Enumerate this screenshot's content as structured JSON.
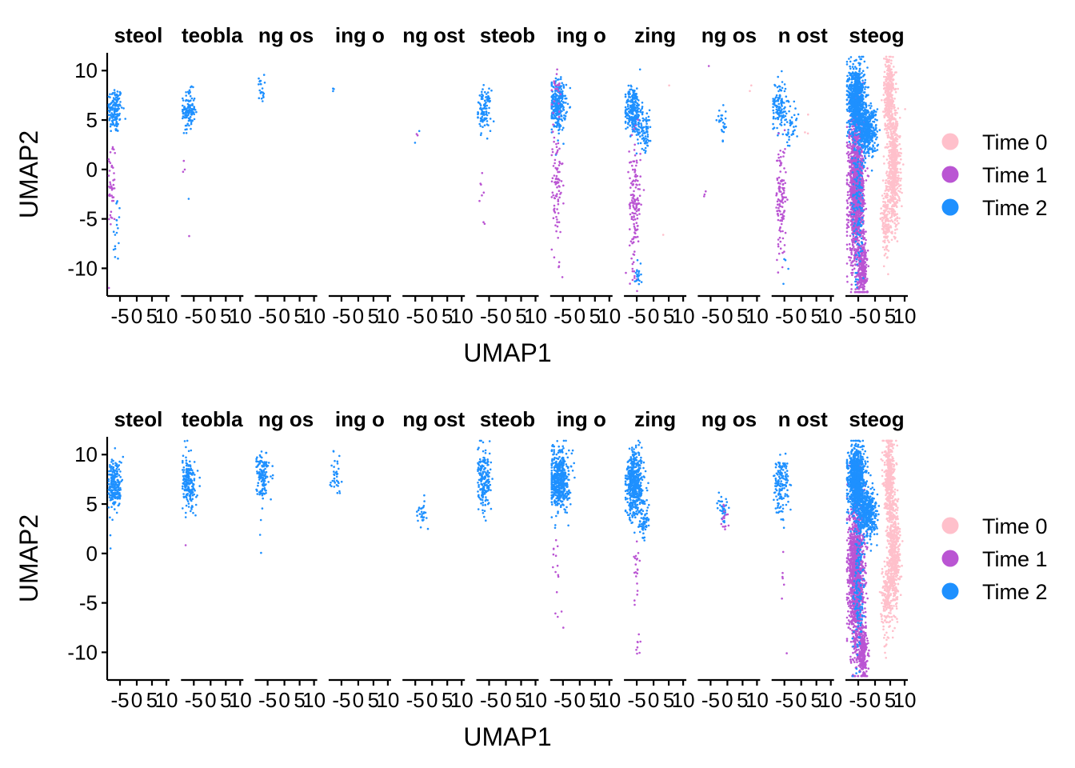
{
  "colors": {
    "Time 0": "#ffc0cb",
    "Time 1": "#ba55d3",
    "Time 2": "#1e90ff"
  },
  "chart_data": [
    {
      "type": "scatter",
      "xlabel": "UMAP1",
      "ylabel": "UMAP2",
      "y_ticks": [
        10,
        5,
        0,
        -5,
        -10
      ],
      "y_tick_labels": [
        "10",
        "5",
        "0",
        "-5",
        "-10"
      ],
      "ylim": [
        -12.8,
        11.8
      ],
      "x_ticks": [
        -5,
        0,
        5,
        10
      ],
      "x_tick_labels": [
        "-5",
        "0",
        "5",
        "10"
      ],
      "xlim": [
        -8,
        12
      ],
      "legend": {
        "placement": "right",
        "entries": [
          "Time 0",
          "Time 1",
          "Time 2"
        ]
      },
      "facets": [
        {
          "title": "steol",
          "clusters": [
            {
              "series": "Time 2",
              "cx": -5.5,
              "cy": 6.0,
              "sx": 1.2,
              "sy": 1.2,
              "n": 150
            },
            {
              "series": "Time 1",
              "cx": -6.5,
              "cy": -1.5,
              "sx": 0.6,
              "sy": 2.5,
              "n": 45
            },
            {
              "series": "Time 2",
              "cx": -5.0,
              "cy": -7.0,
              "sx": 0.6,
              "sy": 2.5,
              "n": 18
            }
          ]
        },
        {
          "title": "teobla",
          "clusters": [
            {
              "series": "Time 2",
              "cx": -5.5,
              "cy": 6.0,
              "sx": 1.0,
              "sy": 1.0,
              "n": 120
            },
            {
              "series": "Time 1",
              "cx": -6.5,
              "cy": 0.0,
              "sx": 0.4,
              "sy": 0.5,
              "n": 3
            },
            {
              "series": "Time 2",
              "cx": -5.5,
              "cy": -3.0,
              "sx": 0.2,
              "sy": 0.3,
              "n": 1
            },
            {
              "series": "Time 1",
              "cx": -5.0,
              "cy": -6.5,
              "sx": 0.2,
              "sy": 0.2,
              "n": 1
            }
          ]
        },
        {
          "title": "ng os",
          "clusters": [
            {
              "series": "Time 2",
              "cx": -6.0,
              "cy": 8.2,
              "sx": 0.5,
              "sy": 0.7,
              "n": 22
            }
          ]
        },
        {
          "title": "ing o",
          "clusters": [
            {
              "series": "Time 2",
              "cx": -6.5,
              "cy": 8.0,
              "sx": 0.2,
              "sy": 0.2,
              "n": 3
            }
          ]
        },
        {
          "title": "ng ost",
          "clusters": [
            {
              "series": "Time 2",
              "cx": -3.0,
              "cy": 3.6,
              "sx": 0.6,
              "sy": 0.5,
              "n": 2
            },
            {
              "series": "Time 1",
              "cx": -3.5,
              "cy": 3.2,
              "sx": 0.3,
              "sy": 0.3,
              "n": 2
            }
          ]
        },
        {
          "title": "steob",
          "clusters": [
            {
              "series": "Time 2",
              "cx": -5.5,
              "cy": 6.0,
              "sx": 1.1,
              "sy": 1.0,
              "n": 110
            },
            {
              "series": "Time 1",
              "cx": -6.5,
              "cy": -2.0,
              "sx": 0.5,
              "sy": 1.5,
              "n": 6
            },
            {
              "series": "Time 1",
              "cx": -5.5,
              "cy": -5.5,
              "sx": 0.3,
              "sy": 0.5,
              "n": 2
            }
          ]
        },
        {
          "title": "ing o",
          "clusters": [
            {
              "series": "Time 2",
              "cx": -5.5,
              "cy": 6.5,
              "sx": 1.3,
              "sy": 1.3,
              "n": 260
            },
            {
              "series": "Time 1",
              "cx": -6.0,
              "cy": 8.5,
              "sx": 0.7,
              "sy": 1.0,
              "n": 20
            },
            {
              "series": "Time 1",
              "cx": -6.0,
              "cy": -1.5,
              "sx": 1.0,
              "sy": 3.0,
              "n": 90
            },
            {
              "series": "Time 1",
              "cx": -4.5,
              "cy": -10.5,
              "sx": 0.4,
              "sy": 0.6,
              "n": 3
            }
          ]
        },
        {
          "title": "zing",
          "clusters": [
            {
              "series": "Time 2",
              "cx": -5.0,
              "cy": 6.0,
              "sx": 1.3,
              "sy": 1.2,
              "n": 260
            },
            {
              "series": "Time 2",
              "cx": -1.5,
              "cy": 4.0,
              "sx": 1.2,
              "sy": 1.0,
              "n": 80
            },
            {
              "series": "Time 1",
              "cx": -4.5,
              "cy": -3.5,
              "sx": 0.9,
              "sy": 3.3,
              "n": 150
            },
            {
              "series": "Time 2",
              "cx": -3.5,
              "cy": -10.5,
              "sx": 0.5,
              "sy": 0.7,
              "n": 20
            },
            {
              "series": "Time 0",
              "cx": 6.5,
              "cy": 8.8,
              "sx": 0.2,
              "sy": 0.2,
              "n": 1
            },
            {
              "series": "Time 0",
              "cx": 4.5,
              "cy": -6.7,
              "sx": 0.2,
              "sy": 0.2,
              "n": 1
            }
          ]
        },
        {
          "title": "ng os",
          "clusters": [
            {
              "series": "Time 1",
              "cx": -4.5,
              "cy": 10.0,
              "sx": 0.2,
              "sy": 0.2,
              "n": 1
            },
            {
              "series": "Time 2",
              "cx": 0.0,
              "cy": 4.5,
              "sx": 0.9,
              "sy": 0.8,
              "n": 25
            },
            {
              "series": "Time 1",
              "cx": -6.0,
              "cy": -1.0,
              "sx": 0.5,
              "sy": 1.0,
              "n": 3
            },
            {
              "series": "Time 0",
              "cx": 9.0,
              "cy": 8.0,
              "sx": 0.3,
              "sy": 0.3,
              "n": 2
            }
          ]
        },
        {
          "title": "n ost",
          "clusters": [
            {
              "series": "Time 2",
              "cx": -5.5,
              "cy": 6.5,
              "sx": 1.2,
              "sy": 1.3,
              "n": 130
            },
            {
              "series": "Time 2",
              "cx": -1.5,
              "cy": 4.0,
              "sx": 1.2,
              "sy": 1.2,
              "n": 35
            },
            {
              "series": "Time 1",
              "cx": -5.0,
              "cy": -3.0,
              "sx": 0.8,
              "sy": 2.8,
              "n": 120
            },
            {
              "series": "Time 2",
              "cx": -3.5,
              "cy": -9.0,
              "sx": 0.4,
              "sy": 1.5,
              "n": 4
            },
            {
              "series": "Time 0",
              "cx": 3.0,
              "cy": 5.0,
              "sx": 0.4,
              "sy": 1.0,
              "n": 3
            }
          ]
        },
        {
          "title": "steog",
          "clusters": [
            {
              "series": "Time 0",
              "cx": 6.0,
              "cy": 7.5,
              "sx": 0.8,
              "sy": 2.0,
              "n": 400
            },
            {
              "series": "Time 0",
              "cx": 7.5,
              "cy": 0.0,
              "sx": 1.0,
              "sy": 2.8,
              "n": 600
            },
            {
              "series": "Time 0",
              "cx": 5.0,
              "cy": -5.0,
              "sx": 0.8,
              "sy": 1.8,
              "n": 150
            },
            {
              "series": "Time 1",
              "cx": -4.5,
              "cy": -2.0,
              "sx": 1.2,
              "sy": 3.8,
              "n": 1400
            },
            {
              "series": "Time 1",
              "cx": -2.5,
              "cy": -10.0,
              "sx": 0.8,
              "sy": 1.2,
              "n": 250
            },
            {
              "series": "Time 2",
              "cx": -4.5,
              "cy": 7.0,
              "sx": 1.3,
              "sy": 1.8,
              "n": 800
            },
            {
              "series": "Time 2",
              "cx": -1.0,
              "cy": 4.0,
              "sx": 1.5,
              "sy": 1.2,
              "n": 450
            },
            {
              "series": "Time 2",
              "cx": -4.0,
              "cy": -3.5,
              "sx": 0.9,
              "sy": 4.0,
              "n": 150
            }
          ]
        }
      ]
    },
    {
      "type": "scatter",
      "xlabel": "UMAP1",
      "ylabel": "UMAP2",
      "y_ticks": [
        10,
        5,
        0,
        -5,
        -10
      ],
      "y_tick_labels": [
        "10",
        "5",
        "0",
        "-5",
        "-10"
      ],
      "ylim": [
        -12.8,
        11.8
      ],
      "x_ticks": [
        -5,
        0,
        5,
        10
      ],
      "x_tick_labels": [
        "-5",
        "0",
        "5",
        "10"
      ],
      "xlim": [
        -8,
        12
      ],
      "legend": {
        "placement": "right",
        "entries": [
          "Time 0",
          "Time 1",
          "Time 2"
        ]
      },
      "facets": [
        {
          "title": "steol",
          "clusters": [
            {
              "series": "Time 2",
              "cx": -5.5,
              "cy": 7.0,
              "sx": 1.1,
              "sy": 1.3,
              "n": 220
            },
            {
              "series": "Time 2",
              "cx": -7.0,
              "cy": 1.0,
              "sx": 0.3,
              "sy": 0.5,
              "n": 2
            }
          ]
        },
        {
          "title": "teobla",
          "clusters": [
            {
              "series": "Time 2",
              "cx": -5.5,
              "cy": 7.0,
              "sx": 1.1,
              "sy": 1.3,
              "n": 200
            },
            {
              "series": "Time 1",
              "cx": -6.5,
              "cy": 0.8,
              "sx": 0.2,
              "sy": 0.2,
              "n": 1
            }
          ]
        },
        {
          "title": "ng os",
          "clusters": [
            {
              "series": "Time 2",
              "cx": -5.5,
              "cy": 8.0,
              "sx": 1.0,
              "sy": 1.2,
              "n": 130
            },
            {
              "series": "Time 2",
              "cx": -6.5,
              "cy": 2.5,
              "sx": 0.3,
              "sy": 1.0,
              "n": 3
            }
          ]
        },
        {
          "title": "ing o",
          "clusters": [
            {
              "series": "Time 2",
              "cx": -5.5,
              "cy": 8.0,
              "sx": 0.8,
              "sy": 1.2,
              "n": 35
            }
          ]
        },
        {
          "title": "ng ost",
          "clusters": [
            {
              "series": "Time 2",
              "cx": -2.0,
              "cy": 4.2,
              "sx": 0.8,
              "sy": 0.6,
              "n": 28
            }
          ]
        },
        {
          "title": "steob",
          "clusters": [
            {
              "series": "Time 2",
              "cx": -5.5,
              "cy": 7.2,
              "sx": 1.1,
              "sy": 1.5,
              "n": 180
            }
          ]
        },
        {
          "title": "ing o",
          "clusters": [
            {
              "series": "Time 2",
              "cx": -5.0,
              "cy": 7.5,
              "sx": 1.5,
              "sy": 1.5,
              "n": 500
            },
            {
              "series": "Time 1",
              "cx": -6.0,
              "cy": -1.0,
              "sx": 0.6,
              "sy": 1.5,
              "n": 12
            },
            {
              "series": "Time 1",
              "cx": -5.0,
              "cy": -6.0,
              "sx": 0.6,
              "sy": 1.5,
              "n": 4
            }
          ]
        },
        {
          "title": "zing",
          "clusters": [
            {
              "series": "Time 2",
              "cx": -4.5,
              "cy": 7.0,
              "sx": 1.4,
              "sy": 1.7,
              "n": 500
            },
            {
              "series": "Time 2",
              "cx": -1.5,
              "cy": 3.5,
              "sx": 0.8,
              "sy": 1.0,
              "n": 60
            },
            {
              "series": "Time 1",
              "cx": -4.0,
              "cy": -1.5,
              "sx": 0.6,
              "sy": 1.5,
              "n": 20
            },
            {
              "series": "Time 1",
              "cx": -3.5,
              "cy": -9.5,
              "sx": 0.4,
              "sy": 1.0,
              "n": 8
            }
          ]
        },
        {
          "title": "ng os",
          "clusters": [
            {
              "series": "Time 2",
              "cx": 0.0,
              "cy": 4.5,
              "sx": 0.9,
              "sy": 1.0,
              "n": 35
            },
            {
              "series": "Time 1",
              "cx": 0.5,
              "cy": 3.5,
              "sx": 0.6,
              "sy": 0.8,
              "n": 15
            }
          ]
        },
        {
          "title": "n ost",
          "clusters": [
            {
              "series": "Time 2",
              "cx": -5.0,
              "cy": 7.0,
              "sx": 1.2,
              "sy": 1.5,
              "n": 150
            },
            {
              "series": "Time 1",
              "cx": -4.5,
              "cy": -2.0,
              "sx": 0.4,
              "sy": 1.5,
              "n": 6
            },
            {
              "series": "Time 1",
              "cx": -3.0,
              "cy": -10.2,
              "sx": 0.2,
              "sy": 0.2,
              "n": 1
            }
          ]
        },
        {
          "title": "steog",
          "clusters": [
            {
              "series": "Time 0",
              "cx": 6.0,
              "cy": 7.5,
              "sx": 0.8,
              "sy": 2.0,
              "n": 400
            },
            {
              "series": "Time 0",
              "cx": 7.5,
              "cy": 0.0,
              "sx": 1.0,
              "sy": 2.8,
              "n": 600
            },
            {
              "series": "Time 0",
              "cx": 5.0,
              "cy": -5.0,
              "sx": 0.8,
              "sy": 1.8,
              "n": 150
            },
            {
              "series": "Time 1",
              "cx": -4.5,
              "cy": -2.0,
              "sx": 1.2,
              "sy": 3.8,
              "n": 1400
            },
            {
              "series": "Time 1",
              "cx": -2.5,
              "cy": -10.0,
              "sx": 0.8,
              "sy": 1.2,
              "n": 250
            },
            {
              "series": "Time 2",
              "cx": -4.5,
              "cy": 7.5,
              "sx": 1.3,
              "sy": 1.6,
              "n": 900
            },
            {
              "series": "Time 2",
              "cx": -1.0,
              "cy": 4.0,
              "sx": 1.5,
              "sy": 1.2,
              "n": 450
            },
            {
              "series": "Time 2",
              "cx": -4.0,
              "cy": -3.5,
              "sx": 0.9,
              "sy": 4.0,
              "n": 150
            }
          ]
        }
      ]
    }
  ]
}
